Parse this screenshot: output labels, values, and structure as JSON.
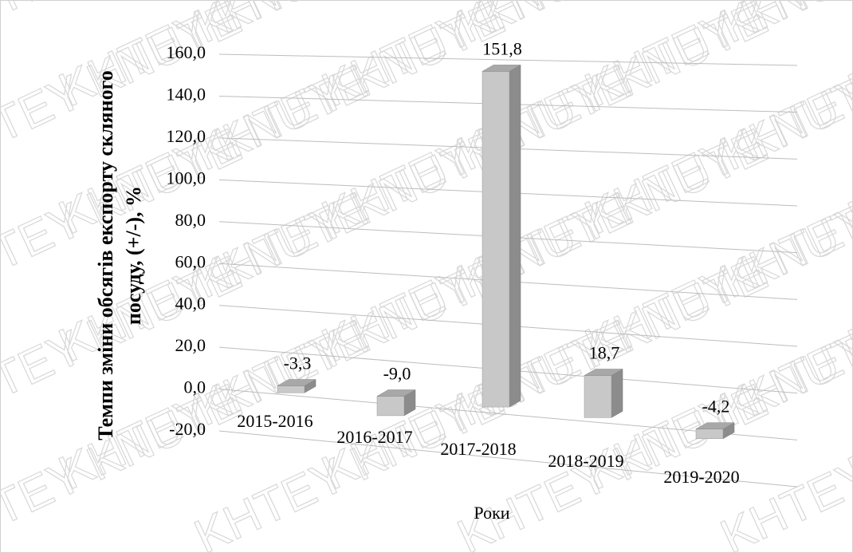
{
  "chart_data": {
    "type": "bar3d",
    "watermark": "KHTEY KNUTE",
    "ylabel": "Темпи зміни обсягів експорту скляного посуду, (+/-), %",
    "xlabel": "Роки",
    "categories": [
      "2015-2016",
      "2016-2017",
      "2017-2018",
      "2018-2019",
      "2019-2020"
    ],
    "values": [
      -3.3,
      -9.0,
      151.8,
      18.7,
      -4.2
    ],
    "value_labels": [
      "-3,3",
      "-9,0",
      "151,8",
      "18,7",
      "-4,2"
    ],
    "color": "#c8c8c8",
    "ylim": [
      -20,
      160
    ],
    "yticks": [
      {
        "value": -20,
        "label": "-20,0"
      },
      {
        "value": 0,
        "label": "0,0"
      },
      {
        "value": 20,
        "label": "20,0"
      },
      {
        "value": 40,
        "label": "40,0"
      },
      {
        "value": 60,
        "label": "60,0"
      },
      {
        "value": 80,
        "label": "80,0"
      },
      {
        "value": 100,
        "label": "100,0"
      },
      {
        "value": 120,
        "label": "120,0"
      },
      {
        "value": 140,
        "label": "140,0"
      },
      {
        "value": 160,
        "label": "160,0"
      }
    ],
    "grid": true
  }
}
